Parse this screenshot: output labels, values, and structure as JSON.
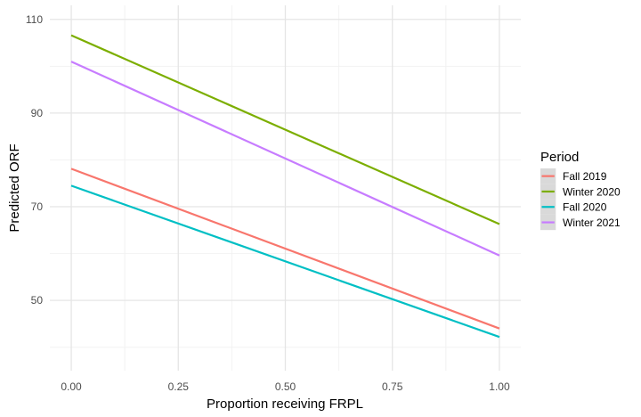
{
  "chart_data": {
    "type": "line",
    "title": "",
    "xlabel": "Proportion receiving FRPL",
    "ylabel": "Predicted ORF",
    "xlim": [
      -0.05,
      1.05
    ],
    "ylim": [
      35,
      113
    ],
    "x_ticks": [
      0.0,
      0.25,
      0.5,
      0.75,
      1.0
    ],
    "x_tick_labels": [
      "0.00",
      "0.25",
      "0.50",
      "0.75",
      "1.00"
    ],
    "y_ticks": [
      50,
      70,
      90,
      110
    ],
    "y_tick_labels": [
      "50",
      "70",
      "90",
      "110"
    ],
    "grid": true,
    "legend": {
      "title": "Period",
      "position": "right"
    },
    "series": [
      {
        "name": "Fall 2019",
        "color": "#F8766D",
        "x": [
          0.0,
          1.0
        ],
        "y": [
          78.1,
          44.0
        ]
      },
      {
        "name": "Winter 2020",
        "color": "#7CAE00",
        "x": [
          0.0,
          1.0
        ],
        "y": [
          106.6,
          66.3
        ]
      },
      {
        "name": "Fall 2020",
        "color": "#00BFC4",
        "x": [
          0.0,
          1.0
        ],
        "y": [
          74.5,
          42.2
        ]
      },
      {
        "name": "Winter 2021",
        "color": "#C77CFF",
        "x": [
          0.0,
          1.0
        ],
        "y": [
          101.0,
          59.6
        ]
      }
    ]
  }
}
